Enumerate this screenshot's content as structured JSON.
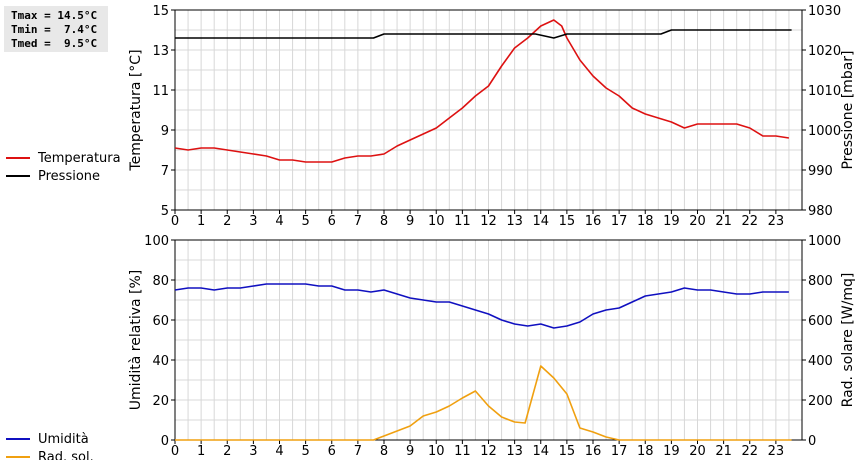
{
  "stats": {
    "tmax": "Tmax = 14.5°C",
    "tmin": "Tmin =  7.4°C",
    "tmed": "Tmed =  9.5°C"
  },
  "colors": {
    "temperature": "#dd1111",
    "pressure": "#000000",
    "humidity": "#1010c0",
    "radiation": "#f0a010",
    "grid": "#d8d8d8",
    "axis": "#000000"
  },
  "chart_data": [
    {
      "type": "line",
      "grid": true,
      "legend_position": "left",
      "ylabel_left": "Temperatura [°C]",
      "ylabel_right": "Pressione [mbar]",
      "xlim": [
        0,
        24
      ],
      "ylim_left": [
        5,
        15
      ],
      "ylim_right": [
        980,
        1030
      ],
      "x_ticks": [
        "0",
        "1",
        "2",
        "3",
        "4",
        "5",
        "6",
        "7",
        "8",
        "9",
        "10",
        "11",
        "12",
        "13",
        "14",
        "15",
        "16",
        "17",
        "18",
        "19",
        "20",
        "21",
        "22",
        "23"
      ],
      "y_ticks_left": [
        "5",
        "7",
        "9",
        "11",
        "13",
        "15"
      ],
      "y_ticks_right": [
        "980",
        "990",
        "1000",
        "1010",
        "1020",
        "1030"
      ],
      "series": [
        {
          "name": "Temperatura",
          "axis": "left",
          "color": "#dd1111",
          "x": [
            0,
            0.5,
            1,
            1.5,
            2,
            2.5,
            3,
            3.5,
            4,
            4.5,
            5,
            5.5,
            6,
            6.5,
            7,
            7.5,
            8,
            8.5,
            9,
            9.5,
            10,
            10.5,
            11,
            11.5,
            12,
            12.5,
            13,
            13.5,
            14,
            14.5,
            14.8,
            15,
            15.5,
            16,
            16.5,
            17,
            17.5,
            18,
            18.5,
            19,
            19.5,
            20,
            20.5,
            21,
            21.5,
            22,
            22.5,
            23,
            23.5
          ],
          "y": [
            8.1,
            8.0,
            8.1,
            8.1,
            8.0,
            7.9,
            7.8,
            7.7,
            7.5,
            7.5,
            7.4,
            7.4,
            7.4,
            7.6,
            7.7,
            7.7,
            7.8,
            8.2,
            8.5,
            8.8,
            9.1,
            9.6,
            10.1,
            10.7,
            11.2,
            12.2,
            13.1,
            13.6,
            14.2,
            14.5,
            14.2,
            13.6,
            12.5,
            11.7,
            11.1,
            10.7,
            10.1,
            9.8,
            9.6,
            9.4,
            9.1,
            9.3,
            9.3,
            9.3,
            9.3,
            9.1,
            8.7,
            8.7,
            8.6
          ]
        },
        {
          "name": "Pressione",
          "axis": "right",
          "color": "#000000",
          "x": [
            0,
            7.6,
            8,
            13.8,
            14.5,
            15,
            18.6,
            19,
            23.6
          ],
          "y": [
            1023,
            1023,
            1024,
            1024,
            1023,
            1024,
            1024,
            1025,
            1025
          ]
        }
      ]
    },
    {
      "type": "line",
      "grid": true,
      "legend_position": "left",
      "ylabel_left": "Umidità relativa [%]",
      "ylabel_right": "Rad. solare [W/mq]",
      "xlim": [
        0,
        24
      ],
      "ylim_left": [
        0,
        100
      ],
      "ylim_right": [
        0,
        1000
      ],
      "x_ticks": [
        "0",
        "1",
        "2",
        "3",
        "4",
        "5",
        "6",
        "7",
        "8",
        "9",
        "10",
        "11",
        "12",
        "13",
        "14",
        "15",
        "16",
        "17",
        "18",
        "19",
        "20",
        "21",
        "22",
        "23"
      ],
      "y_ticks_left": [
        "0",
        "20",
        "40",
        "60",
        "80",
        "100"
      ],
      "y_ticks_right": [
        "0",
        "200",
        "400",
        "600",
        "800",
        "1000"
      ],
      "series": [
        {
          "name": "Umidità",
          "axis": "left",
          "color": "#1010c0",
          "x": [
            0,
            0.5,
            1,
            1.5,
            2,
            2.5,
            3,
            3.5,
            4,
            4.5,
            5,
            5.5,
            6,
            6.5,
            7,
            7.5,
            8,
            8.5,
            9,
            9.5,
            10,
            10.5,
            11,
            11.5,
            12,
            12.5,
            13,
            13.5,
            14,
            14.5,
            15,
            15.5,
            16,
            16.5,
            17,
            17.5,
            18,
            18.5,
            19,
            19.5,
            20,
            20.5,
            21,
            21.5,
            22,
            22.5,
            23,
            23.5
          ],
          "y": [
            75,
            76,
            76,
            75,
            76,
            76,
            77,
            78,
            78,
            78,
            78,
            77,
            77,
            75,
            75,
            74,
            75,
            73,
            71,
            70,
            69,
            69,
            67,
            65,
            63,
            60,
            58,
            57,
            58,
            56,
            57,
            59,
            63,
            65,
            66,
            69,
            72,
            73,
            74,
            76,
            75,
            75,
            74,
            73,
            73,
            74,
            74,
            74
          ]
        },
        {
          "name": "Rad. sol.",
          "axis": "right",
          "color": "#f0a010",
          "x": [
            0,
            7.6,
            8,
            9,
            9.5,
            10,
            10.5,
            11,
            11.5,
            12,
            12.5,
            13,
            13.4,
            14,
            14.5,
            15,
            15.5,
            16,
            16.5,
            17,
            23.6
          ],
          "y": [
            0,
            0,
            20,
            70,
            120,
            140,
            170,
            210,
            245,
            170,
            115,
            90,
            85,
            370,
            310,
            230,
            60,
            40,
            15,
            0,
            0
          ]
        }
      ]
    }
  ]
}
